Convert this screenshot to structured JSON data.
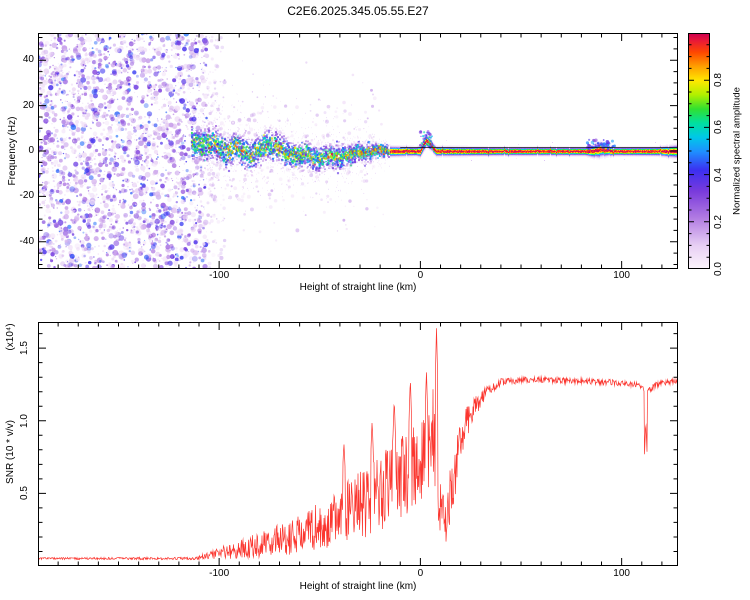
{
  "chart_data": [
    {
      "type": "heatmap",
      "title": "C2E6.2025.345.05.55.E27",
      "xlabel": "Height of straight line (km)",
      "ylabel": "Frequency (Hz)",
      "xlim": [
        -190,
        128
      ],
      "ylim": [
        -52,
        52
      ],
      "xticks": [
        {
          "v": -100,
          "label": "-100"
        },
        {
          "v": 0,
          "label": "0"
        },
        {
          "v": 100,
          "label": "100"
        }
      ],
      "x_minor_step": 10,
      "yticks": [
        {
          "v": 40,
          "label": "40"
        },
        {
          "v": 20,
          "label": "20"
        },
        {
          "v": 0,
          "label": "0"
        },
        {
          "v": -20,
          "label": "-20"
        },
        {
          "v": -40,
          "label": "-40"
        }
      ],
      "y_minor_step": 5,
      "colorbar": {
        "label": "Normalized spectral amplitude",
        "range": [
          0,
          1
        ],
        "ticks": [
          {
            "v": 0.0,
            "label": "0.0"
          },
          {
            "v": 0.2,
            "label": "0.2"
          },
          {
            "v": 0.4,
            "label": "0.4"
          },
          {
            "v": 0.6,
            "label": "0.6"
          },
          {
            "v": 0.8,
            "label": "0.8"
          }
        ],
        "minor_step": 0.05
      },
      "colormap_stops": [
        [
          0.0,
          "#fdf6fc"
        ],
        [
          0.1,
          "#e8d0f4"
        ],
        [
          0.22,
          "#b07ae2"
        ],
        [
          0.33,
          "#7a3bdc"
        ],
        [
          0.42,
          "#3c2ff0"
        ],
        [
          0.5,
          "#1e90ff"
        ],
        [
          0.56,
          "#00c8e8"
        ],
        [
          0.62,
          "#00e0a0"
        ],
        [
          0.68,
          "#30e030"
        ],
        [
          0.74,
          "#b0f000"
        ],
        [
          0.8,
          "#ffe800"
        ],
        [
          0.86,
          "#ffa000"
        ],
        [
          0.92,
          "#ff4800"
        ],
        [
          0.97,
          "#e81838"
        ],
        [
          1.0,
          "#cc0050"
        ]
      ],
      "noise_region": {
        "x_range": [
          -190,
          -106
        ],
        "density": 2600,
        "amplitude_range": [
          0.05,
          0.48
        ]
      },
      "sparse_speckle_region": {
        "x_range": [
          -106,
          -18
        ],
        "count": 330,
        "amplitude_range": [
          0.04,
          0.22
        ]
      },
      "echo_onset_km": -113,
      "signal_track": [
        [
          -113,
          4
        ],
        [
          -108,
          2
        ],
        [
          -104,
          4
        ],
        [
          -100,
          2
        ],
        [
          -96,
          -1
        ],
        [
          -92,
          2
        ],
        [
          -88,
          0
        ],
        [
          -84,
          -2
        ],
        [
          -80,
          1
        ],
        [
          -76,
          3
        ],
        [
          -72,
          2
        ],
        [
          -68,
          0
        ],
        [
          -64,
          -2
        ],
        [
          -60,
          -3
        ],
        [
          -56,
          -1
        ],
        [
          -52,
          -4
        ],
        [
          -48,
          -3
        ],
        [
          -44,
          -2
        ],
        [
          -40,
          -3
        ],
        [
          -36,
          -2
        ],
        [
          -32,
          -1
        ],
        [
          -28,
          -1
        ],
        [
          -24,
          0
        ],
        [
          -20,
          0
        ],
        [
          -15,
          0
        ],
        [
          -10,
          0
        ],
        [
          -5,
          0
        ],
        [
          0,
          0
        ],
        [
          3,
          5
        ],
        [
          6,
          2
        ],
        [
          8,
          0
        ],
        [
          20,
          0
        ],
        [
          60,
          0
        ],
        [
          85,
          0
        ],
        [
          90,
          1
        ],
        [
          95,
          0
        ],
        [
          128,
          0
        ]
      ],
      "track_sigma": [
        [
          -113,
          4.6
        ],
        [
          -95,
          4.3
        ],
        [
          -75,
          4.0
        ],
        [
          -55,
          3.6
        ],
        [
          -38,
          3.0
        ],
        [
          -26,
          2.2
        ],
        [
          -18,
          1.5
        ],
        [
          -15,
          1.2
        ],
        [
          -2,
          1.0
        ],
        [
          2,
          1.5
        ],
        [
          6,
          1.1
        ],
        [
          40,
          0.95
        ],
        [
          82,
          0.95
        ],
        [
          89,
          1.7
        ],
        [
          96,
          0.95
        ],
        [
          118,
          1.0
        ],
        [
          128,
          1.5
        ]
      ],
      "track_amp": [
        [
          -113,
          0.78
        ],
        [
          -95,
          0.82
        ],
        [
          -70,
          0.8
        ],
        [
          -45,
          0.78
        ],
        [
          -28,
          0.85
        ],
        [
          -18,
          0.95
        ],
        [
          -12,
          1.0
        ],
        [
          128,
          1.0
        ]
      ],
      "hotspots": [
        {
          "x": [
            0,
            6
          ],
          "f": [
            1,
            9
          ],
          "n": 34,
          "v": [
            0.25,
            0.65
          ]
        },
        {
          "x": [
            83,
            97
          ],
          "f": [
            1,
            5
          ],
          "n": 48,
          "v": [
            0.25,
            0.55
          ]
        },
        {
          "x": [
            -113,
            -106
          ],
          "f": [
            0,
            6
          ],
          "n": 28,
          "v": [
            0.4,
            0.75
          ]
        }
      ],
      "fit_line": {
        "f_hz": 1.6,
        "x_range": [
          -10,
          128
        ],
        "color": "#000000"
      }
    },
    {
      "type": "line",
      "xlabel": "Height of straight line (km)",
      "ylabel": "SNR (10 * v/v)",
      "ylabel_scale": "(x10⁴)",
      "xlim": [
        -190,
        128
      ],
      "ylim": [
        0,
        1.68
      ],
      "xticks": [
        {
          "v": -100,
          "label": "-100"
        },
        {
          "v": 0,
          "label": "0"
        },
        {
          "v": 100,
          "label": "100"
        }
      ],
      "x_minor_step": 10,
      "yticks": [
        {
          "v": 0.5,
          "label": "0.5"
        },
        {
          "v": 1.0,
          "label": "1.0"
        },
        {
          "v": 1.5,
          "label": "1.5"
        }
      ],
      "y_minor_step": 0.1,
      "color": "#fb2b24",
      "baseline": [
        [
          -190,
          0.05
        ],
        [
          -112,
          0.05
        ],
        [
          -103,
          0.07
        ],
        [
          -95,
          0.09
        ],
        [
          -85,
          0.11
        ],
        [
          -75,
          0.14
        ],
        [
          -65,
          0.17
        ],
        [
          -55,
          0.21
        ],
        [
          -45,
          0.26
        ],
        [
          -35,
          0.33
        ],
        [
          -27,
          0.38
        ],
        [
          -20,
          0.44
        ],
        [
          -14,
          0.5
        ],
        [
          -8,
          0.56
        ],
        [
          -3,
          0.62
        ],
        [
          2,
          0.7
        ],
        [
          6,
          0.85
        ],
        [
          9,
          0.4
        ],
        [
          13,
          0.28
        ],
        [
          17,
          0.6
        ],
        [
          21,
          0.85
        ],
        [
          26,
          1.05
        ],
        [
          32,
          1.18
        ],
        [
          40,
          1.26
        ],
        [
          55,
          1.28
        ],
        [
          75,
          1.27
        ],
        [
          95,
          1.26
        ],
        [
          108,
          1.24
        ],
        [
          113,
          1.2
        ],
        [
          118,
          1.25
        ],
        [
          128,
          1.27
        ]
      ],
      "noise_amp": [
        [
          -190,
          0.012
        ],
        [
          -112,
          0.015
        ],
        [
          -104,
          0.05
        ],
        [
          -96,
          0.09
        ],
        [
          -88,
          0.12
        ],
        [
          -78,
          0.16
        ],
        [
          -68,
          0.2
        ],
        [
          -58,
          0.24
        ],
        [
          -48,
          0.3
        ],
        [
          -38,
          0.36
        ],
        [
          -28,
          0.42
        ],
        [
          -18,
          0.46
        ],
        [
          -8,
          0.5
        ],
        [
          0,
          0.52
        ],
        [
          6,
          0.6
        ],
        [
          10,
          0.35
        ],
        [
          16,
          0.35
        ],
        [
          22,
          0.25
        ],
        [
          28,
          0.12
        ],
        [
          36,
          0.05
        ],
        [
          48,
          0.035
        ],
        [
          128,
          0.035
        ]
      ],
      "spikes": [
        {
          "x": 8,
          "v": 1.64
        },
        {
          "x": 3,
          "v": 1.35
        },
        {
          "x": -5,
          "v": 1.3
        },
        {
          "x": -13,
          "v": 1.15
        },
        {
          "x": -24,
          "v": 1.0
        },
        {
          "x": -38,
          "v": 0.85
        },
        {
          "x": 112,
          "v": 1.0
        }
      ]
    }
  ]
}
